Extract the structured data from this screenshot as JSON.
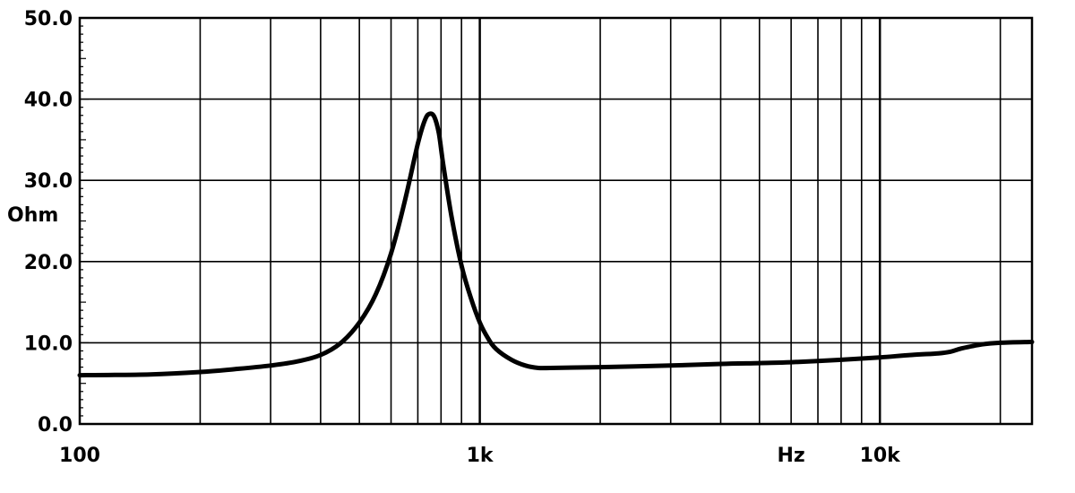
{
  "chart_data": {
    "type": "line",
    "title": "",
    "xlabel": "Hz",
    "ylabel": "Ohm",
    "x_scale": "log",
    "xlim": [
      100,
      24000
    ],
    "ylim": [
      0,
      50
    ],
    "grid": true,
    "y_ticks": [
      {
        "value": 0,
        "label": "0.0"
      },
      {
        "value": 10,
        "label": "10.0"
      },
      {
        "value": 20,
        "label": "20.0"
      },
      {
        "value": 30,
        "label": "30.0"
      },
      {
        "value": 40,
        "label": "40.0"
      },
      {
        "value": 50,
        "label": "50.0"
      }
    ],
    "x_ticks": [
      {
        "value": 100,
        "label": "100"
      },
      {
        "value": 1000,
        "label": "1k"
      },
      {
        "value": 10000,
        "label": "10k"
      }
    ],
    "series": [
      {
        "x": [
          100,
          150,
          200,
          250,
          300,
          350,
          400,
          450,
          500,
          550,
          600,
          650,
          700,
          730,
          750,
          770,
          790,
          810,
          850,
          900,
          950,
          1000,
          1050,
          1100,
          1200,
          1300,
          1400,
          1500,
          2000,
          3000,
          4000,
          5000,
          6000,
          8000,
          10000,
          12000,
          14000,
          15000,
          16000,
          18000,
          20000,
          24000
        ],
        "y": [
          6.0,
          6.1,
          6.4,
          6.8,
          7.2,
          7.7,
          8.5,
          10.0,
          12.5,
          16.0,
          21.0,
          27.5,
          34.5,
          37.5,
          38.2,
          37.8,
          35.8,
          32.0,
          25.5,
          19.5,
          15.5,
          12.5,
          10.5,
          9.2,
          7.9,
          7.2,
          6.9,
          6.9,
          7.0,
          7.2,
          7.4,
          7.5,
          7.6,
          7.9,
          8.2,
          8.5,
          8.7,
          8.9,
          9.3,
          9.8,
          10.0,
          10.1
        ]
      }
    ]
  }
}
